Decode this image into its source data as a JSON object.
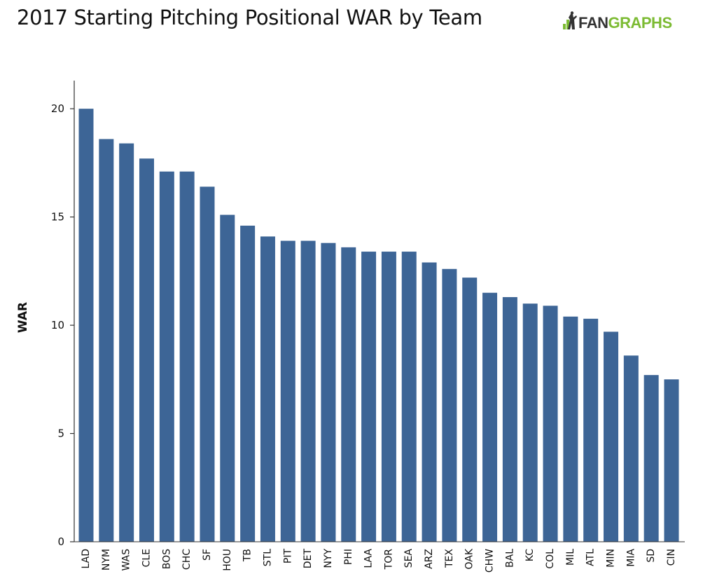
{
  "header": {
    "title": "2017 Starting Pitching Positional WAR by Team",
    "brand_prefix": "FAN",
    "brand_suffix": "GRAPHS",
    "brand_color": "#7cbb33"
  },
  "colors": {
    "bar": "#3d6596",
    "axis": "#333333",
    "text": "#111111"
  },
  "chart_data": {
    "type": "bar",
    "title": "2017 Starting Pitching Positional WAR by Team",
    "xlabel": "",
    "ylabel": "WAR",
    "ylim": [
      0,
      21.3
    ],
    "yticks": [
      0,
      5,
      10,
      15,
      20
    ],
    "grid": false,
    "categories": [
      "LAD",
      "NYM",
      "WAS",
      "CLE",
      "BOS",
      "CHC",
      "SF",
      "HOU",
      "TB",
      "STL",
      "PIT",
      "DET",
      "NYY",
      "PHI",
      "LAA",
      "TOR",
      "SEA",
      "ARZ",
      "TEX",
      "OAK",
      "CHW",
      "BAL",
      "KC",
      "COL",
      "MIL",
      "ATL",
      "MIN",
      "MIA",
      "SD",
      "CIN"
    ],
    "values": [
      20.0,
      18.6,
      18.4,
      17.7,
      17.1,
      17.1,
      16.4,
      15.1,
      14.6,
      14.1,
      13.9,
      13.9,
      13.8,
      13.6,
      13.4,
      13.4,
      13.4,
      12.9,
      12.6,
      12.2,
      11.5,
      11.3,
      11.0,
      10.9,
      10.4,
      10.3,
      9.7,
      8.6,
      7.7,
      7.5
    ]
  }
}
